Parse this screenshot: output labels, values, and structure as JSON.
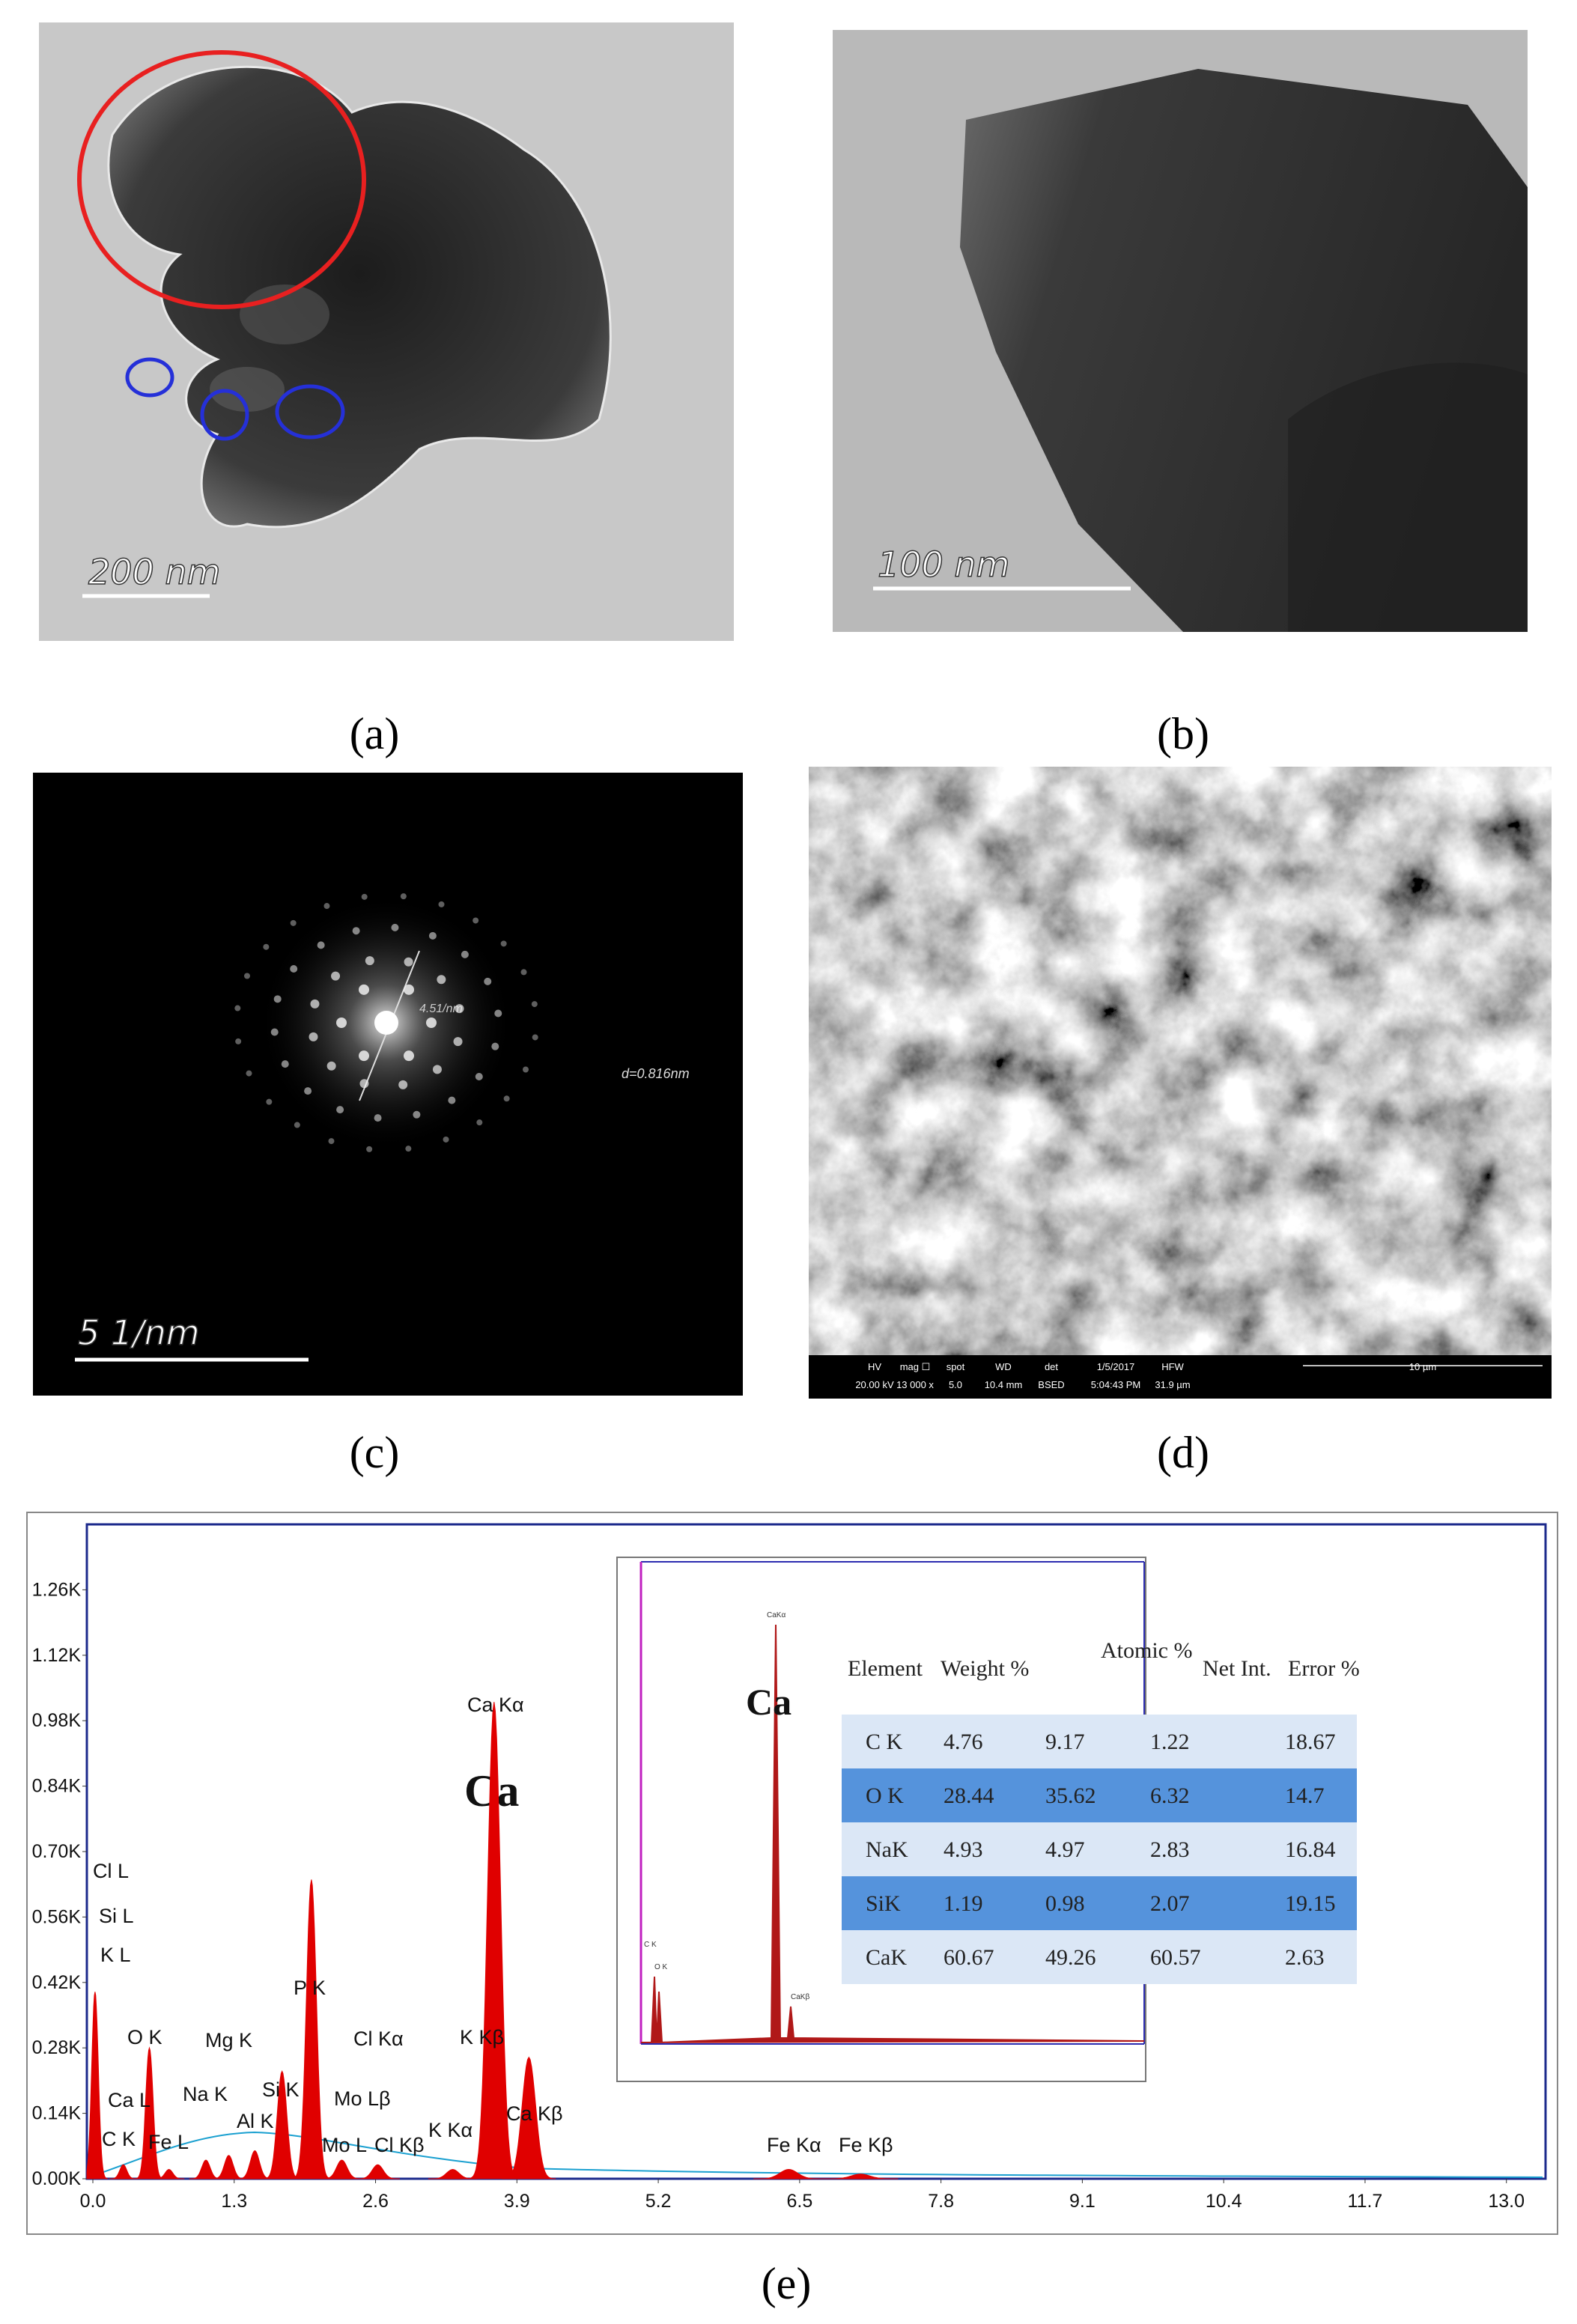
{
  "panels": {
    "a": {
      "label": "(a)",
      "scale_bar": "200 nm"
    },
    "b": {
      "label": "(b)",
      "scale_bar": "100 nm"
    },
    "c": {
      "label": "(c)",
      "scale_bar": "5 1/nm",
      "d_spacing": "d=0.816nm",
      "ring_label": "4.51/nm"
    },
    "d": {
      "label": "(d)",
      "scale_bar": "10 µm",
      "info": [
        {
          "name": "HV",
          "value": "20.00 kV"
        },
        {
          "name": "mag ☐",
          "value": "13 000 x"
        },
        {
          "name": "spot",
          "value": "5.0"
        },
        {
          "name": "WD",
          "value": "10.4 mm"
        },
        {
          "name": "det",
          "value": "BSED"
        },
        {
          "name": "1/5/2017",
          "value": "5:04:43 PM"
        },
        {
          "name": "HFW",
          "value": "31.9 µm"
        }
      ]
    }
  },
  "chart_data": {
    "type": "spectrum",
    "label": "(e)",
    "color": "#e00000",
    "element_label": "Ca",
    "x": [
      0.02,
      0.28,
      0.52,
      0.7,
      1.04,
      1.25,
      1.49,
      1.74,
      2.01,
      2.29,
      2.62,
      3.31,
      3.69,
      4.01,
      6.4,
      7.06
    ],
    "values": [
      400,
      30,
      280,
      20,
      40,
      50,
      60,
      230,
      640,
      40,
      30,
      20,
      1020,
      260,
      20,
      10
    ],
    "annotations": [
      "Cl L",
      "Si L",
      "K  L",
      "O  K",
      "Ca L",
      "C  K",
      "Fe L",
      "Na K",
      "Mg K",
      "Si K",
      "Al K",
      "P  K",
      "Cl Kα",
      "Mo Lβ",
      "Mo L",
      "Cl Kβ",
      "K  Kα",
      "K  Kβ",
      "Ca Kα",
      "Ca Kβ",
      "Fe Kα",
      "Fe Kβ"
    ],
    "xlim": [
      -0.055,
      13.36
    ],
    "ylim": [
      0,
      1400
    ],
    "xticks": [
      {
        "value": 0,
        "label": "0.0"
      },
      1.3,
      2.6,
      3.9,
      5.2,
      6.5,
      7.8,
      9.1,
      10.4,
      11.7,
      {
        "value": 13,
        "label": "13.0"
      }
    ],
    "yticks": [
      {
        "value": 0,
        "label": "0.00K"
      },
      {
        "value": 140,
        "label": "0.14K"
      },
      {
        "value": 280,
        "label": "0.28K"
      },
      {
        "value": 420,
        "label": "0.42K"
      },
      {
        "value": 560,
        "label": "0.56K"
      },
      {
        "value": 700,
        "label": "0.70K"
      },
      {
        "value": 840,
        "label": "0.84K"
      },
      {
        "value": 980,
        "label": "0.98K"
      },
      {
        "value": 1120,
        "label": "1.12K"
      },
      {
        "value": 1260,
        "label": "1.26K"
      }
    ],
    "inset": {
      "element_label": "Ca",
      "peak_labels": [
        "CaKα",
        "CaKβ",
        "C K",
        "O K"
      ],
      "table": {
        "header": [
          "Element",
          "Weight %",
          "Atomic %",
          "Net Int.",
          "Error %"
        ],
        "rows": [
          [
            "C K",
            4.76,
            9.17,
            1.22,
            18.67
          ],
          [
            "O K",
            28.44,
            35.62,
            6.32,
            14.7
          ],
          [
            "NaK",
            4.93,
            4.97,
            2.83,
            16.84
          ],
          [
            "SiK",
            1.19,
            0.98,
            2.07,
            19.15
          ],
          [
            "CaK",
            60.67,
            49.26,
            60.57,
            2.63
          ]
        ]
      }
    }
  }
}
